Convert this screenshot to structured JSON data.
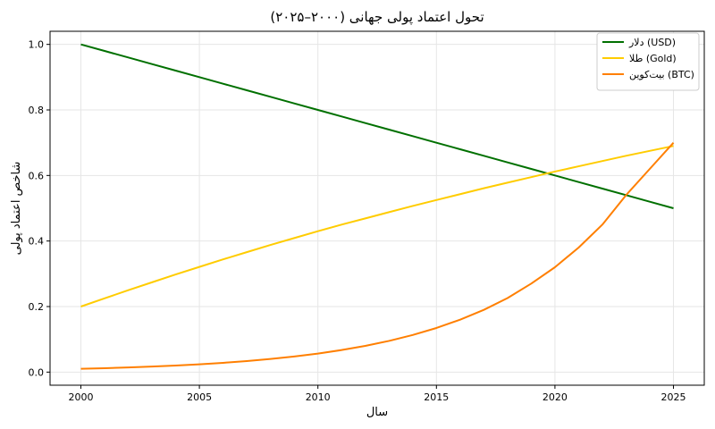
{
  "chart_data": {
    "type": "line",
    "title": "تحول اعتماد پولی جهانی (۲۰۰۰–۲۰۲۵)",
    "xlabel": "سال",
    "ylabel": "شاخص اعتماد پولی",
    "xlim": [
      1998.7,
      2026.3
    ],
    "ylim": [
      -0.04,
      1.04
    ],
    "x_ticks": [
      2000,
      2005,
      2010,
      2015,
      2020,
      2025
    ],
    "y_ticks": [
      0.0,
      0.2,
      0.4,
      0.6,
      0.8,
      1.0
    ],
    "grid": true,
    "legend_position": "top-right",
    "x": [
      2000,
      2001,
      2002,
      2003,
      2004,
      2005,
      2006,
      2007,
      2008,
      2009,
      2010,
      2011,
      2012,
      2013,
      2014,
      2015,
      2016,
      2017,
      2018,
      2019,
      2020,
      2021,
      2022,
      2023,
      2024,
      2025
    ],
    "series": [
      {
        "name": "دلار (USD)",
        "color": "#007000",
        "values": [
          1.0,
          0.98,
          0.96,
          0.94,
          0.92,
          0.9,
          0.88,
          0.86,
          0.84,
          0.82,
          0.8,
          0.78,
          0.76,
          0.74,
          0.72,
          0.7,
          0.68,
          0.66,
          0.64,
          0.62,
          0.6,
          0.58,
          0.56,
          0.54,
          0.52,
          0.5
        ]
      },
      {
        "name": "طلا (Gold)",
        "color": "#ffcc00",
        "values": [
          0.2,
          0.225,
          0.25,
          0.274,
          0.298,
          0.321,
          0.344,
          0.366,
          0.388,
          0.409,
          0.43,
          0.45,
          0.469,
          0.488,
          0.507,
          0.525,
          0.543,
          0.561,
          0.578,
          0.595,
          0.612,
          0.628,
          0.644,
          0.66,
          0.675,
          0.69
        ]
      },
      {
        "name": "بیت‌کوین (BTC)",
        "color": "#ff7f00",
        "values": [
          0.01,
          0.0119,
          0.0141,
          0.0168,
          0.02,
          0.0238,
          0.0283,
          0.0337,
          0.04,
          0.0476,
          0.0566,
          0.0673,
          0.08,
          0.0952,
          0.1132,
          0.1346,
          0.16,
          0.19,
          0.226,
          0.27,
          0.32,
          0.38,
          0.45,
          0.54,
          0.62,
          0.7
        ]
      }
    ]
  }
}
